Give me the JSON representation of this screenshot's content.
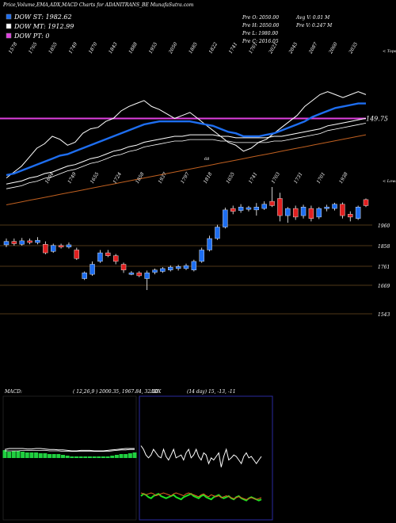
{
  "header": {
    "title": "Price,Volume,EMA,ADX,MACD Charts for ADANITRANS_BE MunafaSutra.com"
  },
  "legend": {
    "items": [
      {
        "label": "DOW ST: 1982.62",
        "color": "#1e6ef0"
      },
      {
        "label": "DOW MT: 1912.99",
        "color": "#ffffff"
      },
      {
        "label": "DOW PT: 0",
        "color": "#e040e0"
      }
    ]
  },
  "ohlc": {
    "pre_o": "Pre  O: 2050.00",
    "pre_h": "Pre  H: 2050.00",
    "pre_l": "Pre  L: 1980.00",
    "pre_c": "Pre  C: 2016.05",
    "avg_v": "Avg V: 0.01 M",
    "pre_v": "Pre  V: 0.247 M"
  },
  "ema_panel": {
    "level_label": "149.75",
    "level_color": "#e040e0",
    "top_note": "< Tops",
    "marker_label": "68",
    "top_labels": [
      "1578",
      "1765",
      "1855",
      "1749",
      "1870",
      "1843",
      "1888",
      "1955",
      "2050",
      "1885",
      "1822",
      "1741",
      "1761",
      "2021",
      "2045",
      "2087",
      "2060",
      "2035"
    ],
    "bottom_labels": [
      "1604",
      "1749",
      "1655",
      "1724",
      "1858",
      "1937",
      "1797",
      "1818",
      "1655",
      "1741",
      "1703",
      "1731",
      "1701",
      "1938"
    ],
    "bottom_note": "< Lows",
    "series": [
      {
        "name": "price",
        "color": "#ffffff",
        "values": [
          78,
          74,
          70,
          64,
          58,
          55,
          50,
          52,
          56,
          54,
          48,
          45,
          44,
          40,
          38,
          33,
          30,
          28,
          26,
          30,
          32,
          35,
          38,
          36,
          34,
          38,
          42,
          46,
          50,
          54,
          56,
          60,
          58,
          54,
          52,
          48,
          44,
          40,
          36,
          30,
          26,
          22,
          20,
          22,
          24,
          22,
          20,
          22
        ]
      },
      {
        "name": "ema-fast",
        "color": "#1e6ef0",
        "values": [
          76,
          75,
          73,
          71,
          69,
          67,
          65,
          63,
          62,
          60,
          58,
          56,
          54,
          52,
          50,
          48,
          46,
          44,
          42,
          41,
          40,
          40,
          40,
          40,
          40,
          41,
          42,
          43,
          45,
          47,
          48,
          50,
          50,
          50,
          49,
          48,
          46,
          44,
          42,
          40,
          37,
          35,
          33,
          31,
          30,
          29,
          28,
          28
        ]
      },
      {
        "name": "ema-mid",
        "color": "#ffffff",
        "values": [
          82,
          81,
          80,
          78,
          77,
          75,
          74,
          72,
          70,
          69,
          67,
          65,
          64,
          62,
          60,
          59,
          57,
          56,
          54,
          53,
          52,
          51,
          50,
          50,
          49,
          49,
          49,
          49,
          50,
          50,
          51,
          51,
          51,
          51,
          51,
          50,
          50,
          49,
          48,
          47,
          46,
          45,
          43,
          42,
          41,
          40,
          39,
          38
        ]
      },
      {
        "name": "ema-slow",
        "color": "#c06020",
        "values": [
          96,
          95,
          94,
          93,
          92,
          91,
          90,
          89,
          88,
          87,
          86,
          85,
          84,
          83,
          82,
          81,
          80,
          79,
          78,
          77,
          76,
          75,
          74,
          73,
          72,
          71,
          70,
          69,
          68,
          67,
          66,
          65,
          64,
          63,
          62,
          61,
          60,
          59,
          58,
          57,
          56,
          55,
          54,
          53,
          52,
          51,
          50,
          49
        ]
      }
    ]
  },
  "chart_data": {
    "type": "candlestick",
    "price_levels": [
      "1960",
      "1858",
      "1761",
      "1669",
      "1543"
    ],
    "candles": [
      {
        "o": 1858,
        "c": 1870,
        "h": 1880,
        "l": 1850,
        "up": true
      },
      {
        "o": 1870,
        "c": 1862,
        "h": 1880,
        "l": 1855,
        "up": false
      },
      {
        "o": 1860,
        "c": 1872,
        "h": 1882,
        "l": 1855,
        "up": true
      },
      {
        "o": 1872,
        "c": 1866,
        "h": 1880,
        "l": 1860,
        "up": false
      },
      {
        "o": 1866,
        "c": 1874,
        "h": 1885,
        "l": 1860,
        "up": true
      },
      {
        "o": 1860,
        "c": 1830,
        "h": 1870,
        "l": 1825,
        "up": false
      },
      {
        "o": 1835,
        "c": 1856,
        "h": 1862,
        "l": 1830,
        "up": true
      },
      {
        "o": 1856,
        "c": 1850,
        "h": 1862,
        "l": 1845,
        "up": false
      },
      {
        "o": 1850,
        "c": 1858,
        "h": 1866,
        "l": 1845,
        "up": true
      },
      {
        "o": 1840,
        "c": 1810,
        "h": 1848,
        "l": 1805,
        "up": false
      },
      {
        "o": 1760,
        "c": 1740,
        "h": 1765,
        "l": 1735,
        "up": true
      },
      {
        "o": 1755,
        "c": 1790,
        "h": 1800,
        "l": 1750,
        "up": true
      },
      {
        "o": 1800,
        "c": 1830,
        "h": 1840,
        "l": 1795,
        "up": true
      },
      {
        "o": 1830,
        "c": 1820,
        "h": 1840,
        "l": 1815,
        "up": false
      },
      {
        "o": 1820,
        "c": 1800,
        "h": 1826,
        "l": 1790,
        "up": false
      },
      {
        "o": 1790,
        "c": 1770,
        "h": 1796,
        "l": 1760,
        "up": false
      },
      {
        "o": 1760,
        "c": 1758,
        "h": 1766,
        "l": 1752,
        "up": true
      },
      {
        "o": 1760,
        "c": 1750,
        "h": 1766,
        "l": 1745,
        "up": false
      },
      {
        "o": 1740,
        "c": 1760,
        "h": 1768,
        "l": 1700,
        "up": true
      },
      {
        "o": 1762,
        "c": 1770,
        "h": 1775,
        "l": 1755,
        "up": true
      },
      {
        "o": 1765,
        "c": 1775,
        "h": 1780,
        "l": 1760,
        "up": true
      },
      {
        "o": 1770,
        "c": 1780,
        "h": 1786,
        "l": 1765,
        "up": true
      },
      {
        "o": 1775,
        "c": 1782,
        "h": 1788,
        "l": 1768,
        "up": true
      },
      {
        "o": 1775,
        "c": 1785,
        "h": 1792,
        "l": 1770,
        "up": true
      },
      {
        "o": 1770,
        "c": 1800,
        "h": 1806,
        "l": 1765,
        "up": true
      },
      {
        "o": 1800,
        "c": 1840,
        "h": 1848,
        "l": 1795,
        "up": true
      },
      {
        "o": 1840,
        "c": 1880,
        "h": 1890,
        "l": 1835,
        "up": true
      },
      {
        "o": 1880,
        "c": 1920,
        "h": 1928,
        "l": 1875,
        "up": true
      },
      {
        "o": 1920,
        "c": 1980,
        "h": 1988,
        "l": 1915,
        "up": true
      },
      {
        "o": 1985,
        "c": 1975,
        "h": 1995,
        "l": 1965,
        "up": false
      },
      {
        "o": 1978,
        "c": 1990,
        "h": 2000,
        "l": 1970,
        "up": true
      },
      {
        "o": 1982,
        "c": 1988,
        "h": 1994,
        "l": 1975,
        "up": true
      },
      {
        "o": 1990,
        "c": 1980,
        "h": 2004,
        "l": 1960,
        "up": true
      },
      {
        "o": 1985,
        "c": 2000,
        "h": 2010,
        "l": 1980,
        "up": true
      },
      {
        "o": 2010,
        "c": 1995,
        "h": 2060,
        "l": 1990,
        "up": false
      },
      {
        "o": 2020,
        "c": 1960,
        "h": 2040,
        "l": 1940,
        "up": false
      },
      {
        "o": 1960,
        "c": 1985,
        "h": 1990,
        "l": 1935,
        "up": true
      },
      {
        "o": 1985,
        "c": 1955,
        "h": 1995,
        "l": 1945,
        "up": false
      },
      {
        "o": 1960,
        "c": 1990,
        "h": 1998,
        "l": 1950,
        "up": true
      },
      {
        "o": 1985,
        "c": 1950,
        "h": 1995,
        "l": 1940,
        "up": false
      },
      {
        "o": 1955,
        "c": 1985,
        "h": 1990,
        "l": 1948,
        "up": true
      },
      {
        "o": 1985,
        "c": 1990,
        "h": 1998,
        "l": 1975,
        "up": true
      },
      {
        "o": 1985,
        "c": 2000,
        "h": 2005,
        "l": 1978,
        "up": true
      },
      {
        "o": 2000,
        "c": 1960,
        "h": 2006,
        "l": 1950,
        "up": false
      },
      {
        "o": 1965,
        "c": 1955,
        "h": 1975,
        "l": 1940,
        "up": false
      },
      {
        "o": 1950,
        "c": 1990,
        "h": 1995,
        "l": 1945,
        "up": true
      },
      {
        "o": 2016,
        "c": 1995,
        "h": 2020,
        "l": 1990,
        "up": false
      }
    ],
    "up_color": "#1e6ef0",
    "down_color": "#e02020"
  },
  "macd_panel": {
    "label": "MACD:",
    "params": "( 12,26,9 ) 2000.35,  1967.84,  32.50",
    "line1": [
      32,
      30,
      30,
      30,
      30,
      31,
      31,
      30,
      30,
      31,
      32,
      32,
      33,
      33,
      34,
      35,
      35,
      34,
      34,
      34,
      35,
      35,
      35,
      34,
      33,
      32,
      31,
      30,
      30,
      30
    ],
    "line2": [
      35,
      35,
      35,
      35,
      34,
      34,
      34,
      34,
      34,
      34,
      35,
      35,
      35,
      36,
      36,
      36,
      36,
      36,
      36,
      36,
      36,
      36,
      36,
      36,
      35,
      34,
      33,
      33,
      32,
      32
    ],
    "histogram": [
      10,
      8,
      9,
      9,
      8,
      7,
      7,
      7,
      6,
      6,
      5,
      5,
      5,
      4,
      3,
      2,
      2,
      2,
      2,
      2,
      2,
      2,
      2,
      2,
      3,
      4,
      5,
      5,
      6,
      7
    ]
  },
  "adx_panel": {
    "label": "ADX",
    "params": "(14  day) 15,  -13,  -11",
    "adx": [
      75,
      70,
      62,
      58,
      62,
      70,
      65,
      60,
      58,
      70,
      60,
      55,
      62,
      70,
      58,
      60,
      62,
      55,
      65,
      70,
      58,
      62,
      70,
      60,
      55,
      65,
      62,
      50,
      58,
      55,
      60,
      65,
      45,
      60,
      70,
      55,
      58,
      62,
      60,
      55,
      50,
      60,
      65,
      58,
      60,
      55,
      50,
      55,
      60
    ],
    "plus_di": [
      10,
      12,
      11,
      9,
      8,
      10,
      11,
      12,
      10,
      9,
      8,
      9,
      10,
      11,
      9,
      8,
      7,
      9,
      10,
      11,
      12,
      10,
      9,
      8,
      10,
      11,
      9,
      8,
      7,
      9,
      10,
      11,
      9,
      8,
      9,
      10,
      8,
      7,
      9,
      10,
      8,
      7,
      6,
      8,
      9,
      8,
      7,
      6,
      7
    ],
    "minus_di": [
      15,
      14,
      13,
      14,
      15,
      14,
      12,
      13,
      14,
      15,
      14,
      13,
      12,
      14,
      15,
      14,
      13,
      12,
      14,
      15,
      14,
      13,
      12,
      11,
      13,
      14,
      12,
      11,
      13,
      12,
      11,
      12,
      10,
      11,
      12,
      11,
      10,
      9,
      10,
      11,
      10,
      9,
      8,
      9,
      10,
      9,
      8,
      9,
      10
    ]
  }
}
